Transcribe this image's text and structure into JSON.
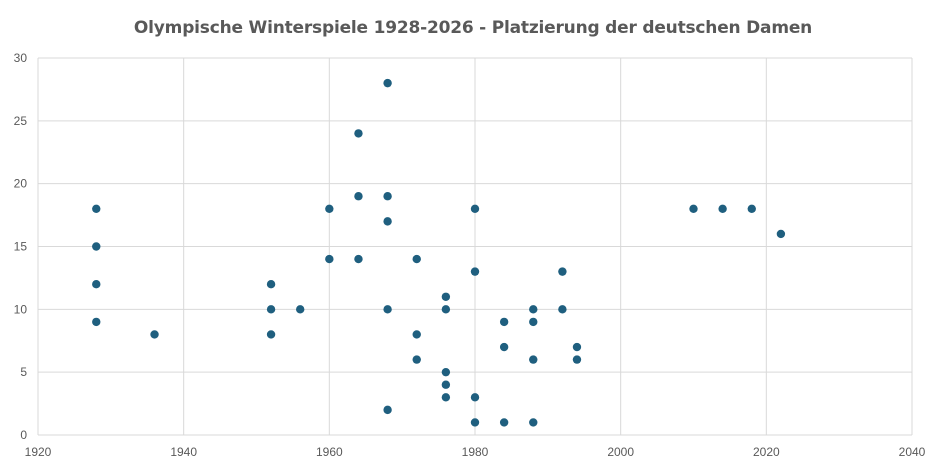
{
  "chart_data": {
    "type": "scatter",
    "title": "Olympische Winterspiele 1928-2026 - Platzierung der deutschen Damen",
    "xlabel": "",
    "ylabel": "",
    "xlim": [
      1920,
      2040
    ],
    "ylim": [
      0,
      30
    ],
    "xticks": [
      1920,
      1940,
      1960,
      1980,
      2000,
      2020,
      2040
    ],
    "yticks": [
      0,
      5,
      10,
      15,
      20,
      25,
      30
    ],
    "grid": true,
    "legend": "none",
    "marker_color": "#1f5f7f",
    "gridline_color": "#d9d9d9",
    "series": [
      {
        "points": [
          {
            "x": 1928,
            "y": 18
          },
          {
            "x": 1928,
            "y": 15
          },
          {
            "x": 1928,
            "y": 12
          },
          {
            "x": 1928,
            "y": 9
          },
          {
            "x": 1936,
            "y": 8
          },
          {
            "x": 1952,
            "y": 12
          },
          {
            "x": 1952,
            "y": 10
          },
          {
            "x": 1952,
            "y": 8
          },
          {
            "x": 1956,
            "y": 10
          },
          {
            "x": 1960,
            "y": 18
          },
          {
            "x": 1960,
            "y": 14
          },
          {
            "x": 1964,
            "y": 24
          },
          {
            "x": 1964,
            "y": 19
          },
          {
            "x": 1964,
            "y": 14
          },
          {
            "x": 1968,
            "y": 28
          },
          {
            "x": 1968,
            "y": 19
          },
          {
            "x": 1968,
            "y": 17
          },
          {
            "x": 1968,
            "y": 10
          },
          {
            "x": 1968,
            "y": 2
          },
          {
            "x": 1972,
            "y": 14
          },
          {
            "x": 1972,
            "y": 8
          },
          {
            "x": 1972,
            "y": 6
          },
          {
            "x": 1976,
            "y": 11
          },
          {
            "x": 1976,
            "y": 10
          },
          {
            "x": 1976,
            "y": 5
          },
          {
            "x": 1976,
            "y": 4
          },
          {
            "x": 1976,
            "y": 3
          },
          {
            "x": 1980,
            "y": 18
          },
          {
            "x": 1980,
            "y": 13
          },
          {
            "x": 1980,
            "y": 3
          },
          {
            "x": 1980,
            "y": 1
          },
          {
            "x": 1984,
            "y": 9
          },
          {
            "x": 1984,
            "y": 7
          },
          {
            "x": 1984,
            "y": 1
          },
          {
            "x": 1988,
            "y": 10
          },
          {
            "x": 1988,
            "y": 9
          },
          {
            "x": 1988,
            "y": 6
          },
          {
            "x": 1988,
            "y": 1
          },
          {
            "x": 1992,
            "y": 13
          },
          {
            "x": 1992,
            "y": 10
          },
          {
            "x": 1994,
            "y": 7
          },
          {
            "x": 1994,
            "y": 6
          },
          {
            "x": 2010,
            "y": 18
          },
          {
            "x": 2014,
            "y": 18
          },
          {
            "x": 2018,
            "y": 18
          },
          {
            "x": 2022,
            "y": 16
          }
        ]
      }
    ]
  }
}
